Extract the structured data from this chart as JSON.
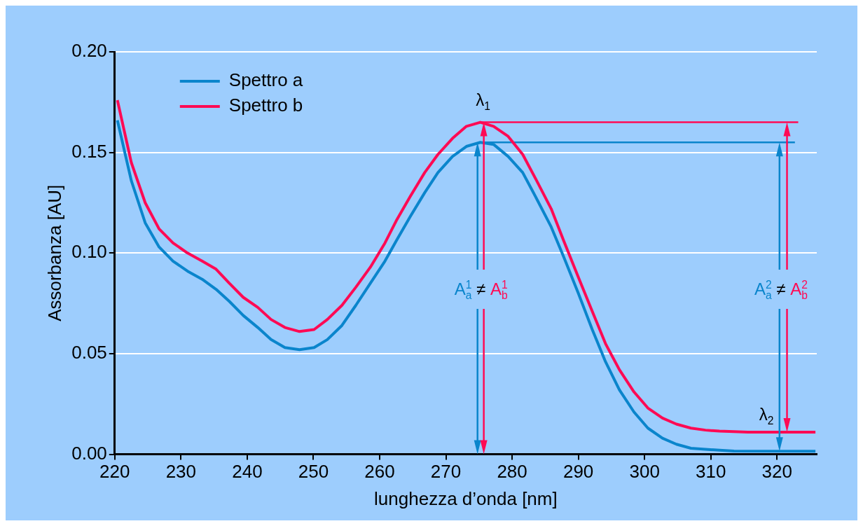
{
  "chart_data": {
    "type": "line",
    "xlabel": "lunghezza d’onda [nm]",
    "ylabel": "Assorbanza [AU]",
    "xlim": [
      220,
      326
    ],
    "xticks": [
      220,
      230,
      240,
      250,
      260,
      270,
      280,
      290,
      300,
      310,
      320
    ],
    "ylim": [
      0,
      0.2
    ],
    "yticks": [
      {
        "value": 0,
        "label": "0.00"
      },
      {
        "value": 0.05,
        "label": "0.05"
      },
      {
        "value": 0.1,
        "label": "0.10"
      },
      {
        "value": 0.15,
        "label": "0.15"
      },
      {
        "value": 0.2,
        "label": "0.20"
      }
    ],
    "grid": "y",
    "legend": "top left",
    "line_style": "solid",
    "series": [
      {
        "name": "Spettro a",
        "color": "#0a85cc",
        "x": [
          220.4,
          222.5,
          224.6,
          226.7,
          228.8,
          231,
          233.2,
          235.3,
          237.3,
          239.4,
          241.6,
          243.6,
          245.7,
          247.9,
          250.1,
          252.1,
          254.3,
          256.4,
          258.6,
          260.8,
          262.5,
          264.6,
          266.8,
          268.8,
          271,
          273.1,
          275.2,
          277.2,
          279.4,
          281.6,
          283.7,
          285.9,
          287.8,
          290,
          292.1,
          294.1,
          296.2,
          298.4,
          300.5,
          302.7,
          304.8,
          307,
          309.2,
          311.3,
          313.5,
          325.8
        ],
        "values": [
          0.166,
          0.136,
          0.115,
          0.103,
          0.096,
          0.091,
          0.087,
          0.082,
          0.076,
          0.069,
          0.063,
          0.057,
          0.053,
          0.052,
          0.053,
          0.057,
          0.064,
          0.074,
          0.085,
          0.096,
          0.106,
          0.118,
          0.13,
          0.14,
          0.148,
          0.153,
          0.155,
          0.154,
          0.148,
          0.14,
          0.127,
          0.113,
          0.098,
          0.08,
          0.062,
          0.046,
          0.032,
          0.021,
          0.013,
          0.008,
          0.005,
          0.003,
          0.0025,
          0.002,
          0.0016,
          0.0015
        ]
      },
      {
        "name": "Spettro b",
        "color": "#ff0a54",
        "x": [
          220.4,
          222.5,
          224.6,
          226.7,
          228.8,
          231,
          233.2,
          235.3,
          237.3,
          239.4,
          241.6,
          243.6,
          245.7,
          247.9,
          250.1,
          252.1,
          254.3,
          256.4,
          258.6,
          260.8,
          262.5,
          264.6,
          266.8,
          268.8,
          271,
          273.1,
          275.2,
          277.2,
          279.4,
          281.6,
          283.7,
          285.9,
          287.8,
          290,
          292.1,
          294.1,
          296.2,
          298.4,
          300.5,
          302.7,
          304.8,
          307,
          309.2,
          311.3,
          313.5,
          315.6,
          317.8,
          325.8
        ],
        "values": [
          0.176,
          0.145,
          0.125,
          0.112,
          0.105,
          0.1,
          0.096,
          0.092,
          0.085,
          0.078,
          0.073,
          0.067,
          0.063,
          0.061,
          0.062,
          0.067,
          0.074,
          0.083,
          0.093,
          0.105,
          0.116,
          0.128,
          0.14,
          0.149,
          0.157,
          0.163,
          0.165,
          0.163,
          0.158,
          0.149,
          0.136,
          0.122,
          0.106,
          0.088,
          0.071,
          0.055,
          0.042,
          0.031,
          0.023,
          0.018,
          0.015,
          0.013,
          0.012,
          0.0115,
          0.0113,
          0.011,
          0.011,
          0.011
        ]
      },
      {
        "color": "#ff0a54",
        "x": [
          275.3,
          323.2
        ],
        "values": [
          0.165,
          0.165
        ]
      },
      {
        "color": "#0a85cc",
        "x": [
          275.2,
          322.7
        ],
        "values": [
          0.155,
          0.155
        ]
      }
    ],
    "annotations": [
      "λ$_{1}$",
      "λ$_{2}$",
      "A$^{1}$$_{a}$ ≠ A$^{1}$$_{b}$",
      "A$^{2}$$_{a}$ ≠ A$^{2}$$_{b}$"
    ]
  }
}
